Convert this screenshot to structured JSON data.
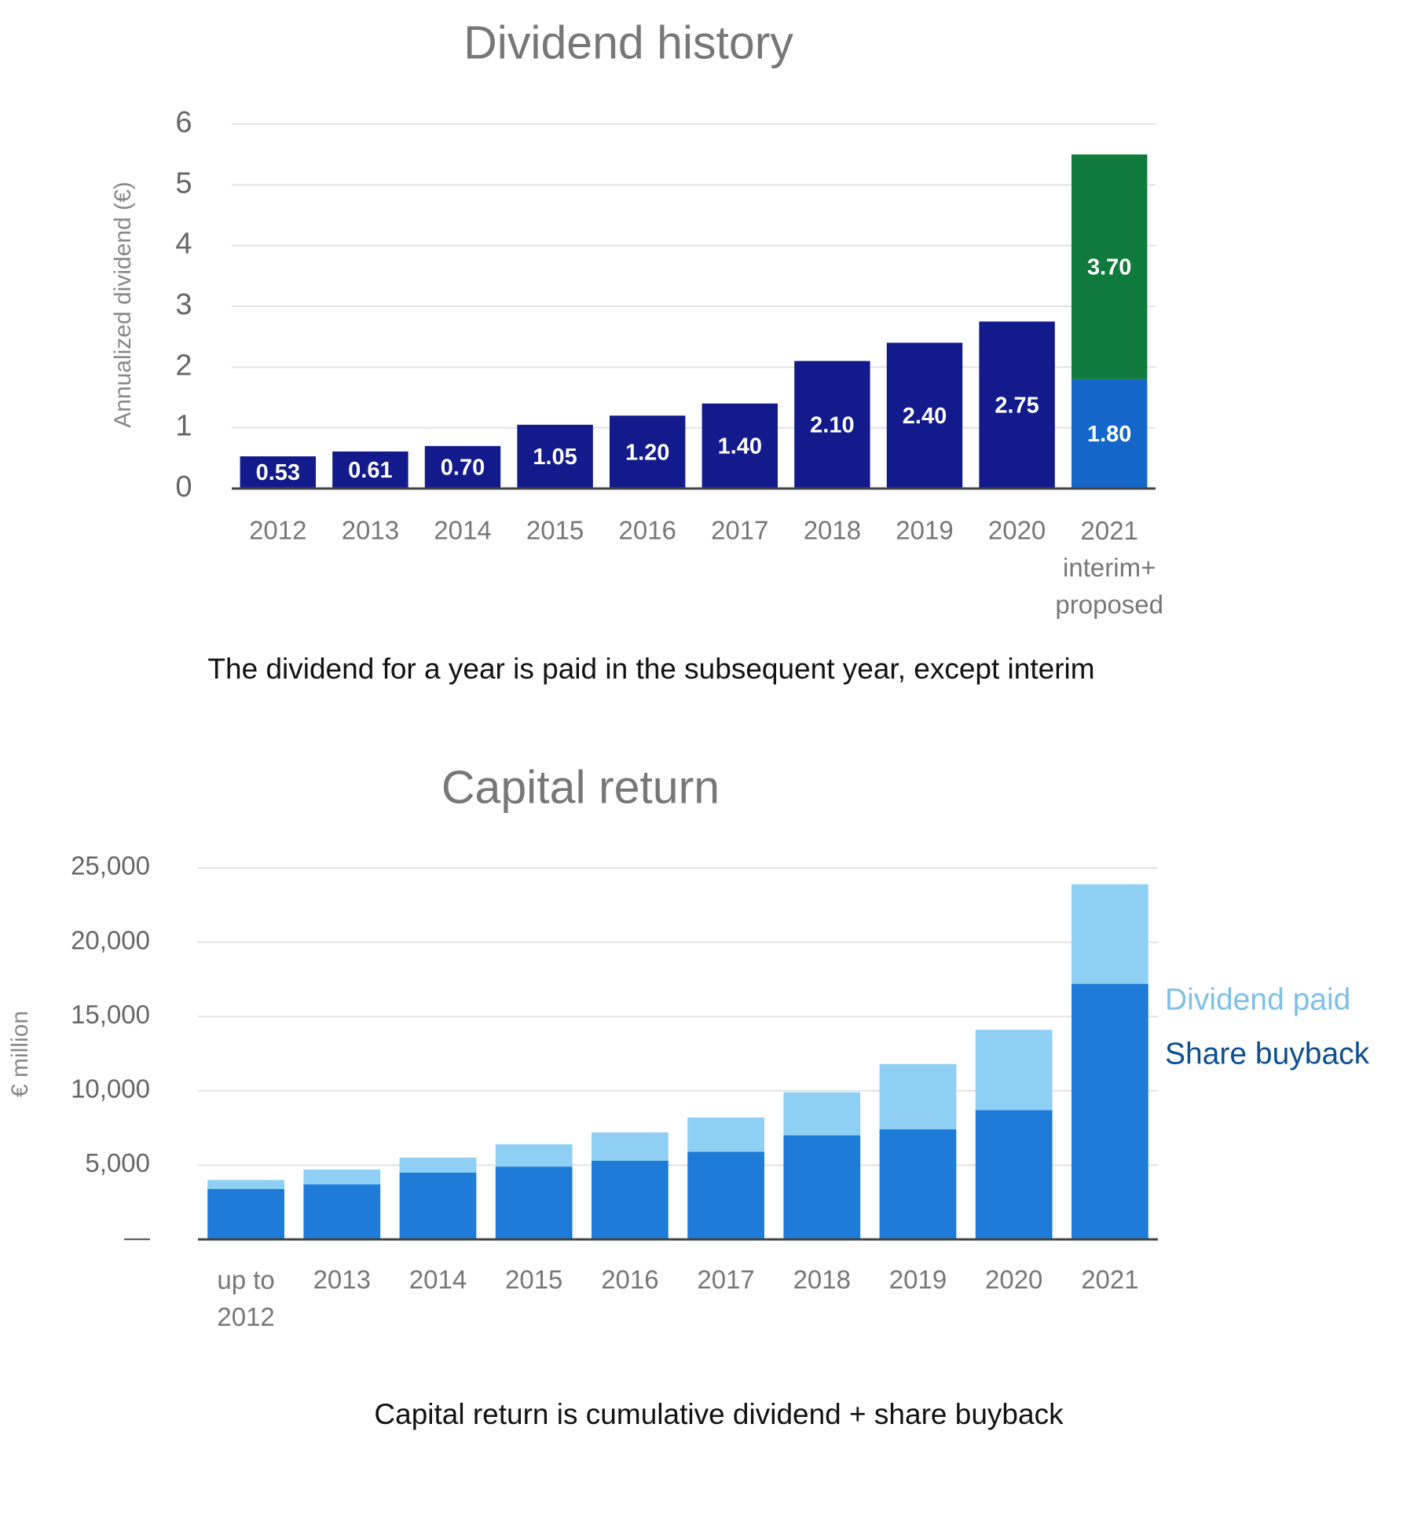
{
  "chart_data": [
    {
      "type": "bar",
      "stacked": true,
      "title": "Dividend history",
      "ylabel": "Annualized dividend (€)",
      "caption": "The dividend for a year is paid in the subsequent year, except interim",
      "categories": [
        "2012",
        "2013",
        "2014",
        "2015",
        "2016",
        "2017",
        "2018",
        "2019",
        "2020",
        "2021\ninterim+\nproposed"
      ],
      "series": [
        {
          "color": "#131a8c",
          "values": [
            0.53,
            0.61,
            0.7,
            1.05,
            1.2,
            1.4,
            2.1,
            2.4,
            2.75,
            null
          ],
          "value_labels": [
            "0.53",
            "0.61",
            "0.70",
            "1.05",
            "1.20",
            "1.40",
            "2.10",
            "2.40",
            "2.75",
            null
          ]
        },
        {
          "color": "#1467c9",
          "values": [
            null,
            null,
            null,
            null,
            null,
            null,
            null,
            null,
            null,
            1.8
          ],
          "value_labels": [
            null,
            null,
            null,
            null,
            null,
            null,
            null,
            null,
            null,
            "1.80"
          ]
        },
        {
          "color": "#0f7a3c",
          "values": [
            null,
            null,
            null,
            null,
            null,
            null,
            null,
            null,
            null,
            3.7
          ],
          "value_labels": [
            null,
            null,
            null,
            null,
            null,
            null,
            null,
            null,
            null,
            "3.70"
          ]
        }
      ],
      "ylim": [
        0,
        6
      ],
      "yticks": [
        0,
        1,
        2,
        3,
        4,
        5,
        6
      ],
      "grid": true
    },
    {
      "type": "bar",
      "stacked": true,
      "title": "Capital return",
      "ylabel": "€ million",
      "caption": "Capital return is cumulative dividend + share buyback",
      "categories": [
        "up to\n2012",
        "2013",
        "2014",
        "2015",
        "2016",
        "2017",
        "2018",
        "2019",
        "2020",
        "2021"
      ],
      "series": [
        {
          "name": "Share buyback",
          "color": "#1e7bd8",
          "values": [
            3400,
            3700,
            4500,
            4900,
            5300,
            5900,
            7000,
            7400,
            8700,
            17200
          ]
        },
        {
          "name": "Dividend paid",
          "color": "#8ecff3",
          "values": [
            600,
            1000,
            1000,
            1500,
            1900,
            2300,
            2900,
            4400,
            5400,
            6700
          ]
        }
      ],
      "ylim": [
        0,
        25000
      ],
      "yticks": [
        {
          "value": 0,
          "label": "—"
        },
        {
          "value": 5000,
          "label": "5,000"
        },
        {
          "value": 10000,
          "label": "10,000"
        },
        {
          "value": 15000,
          "label": "15,000"
        },
        {
          "value": 20000,
          "label": "20,000"
        },
        {
          "value": 25000,
          "label": "25,000"
        }
      ],
      "grid": true,
      "legend": "right"
    }
  ]
}
